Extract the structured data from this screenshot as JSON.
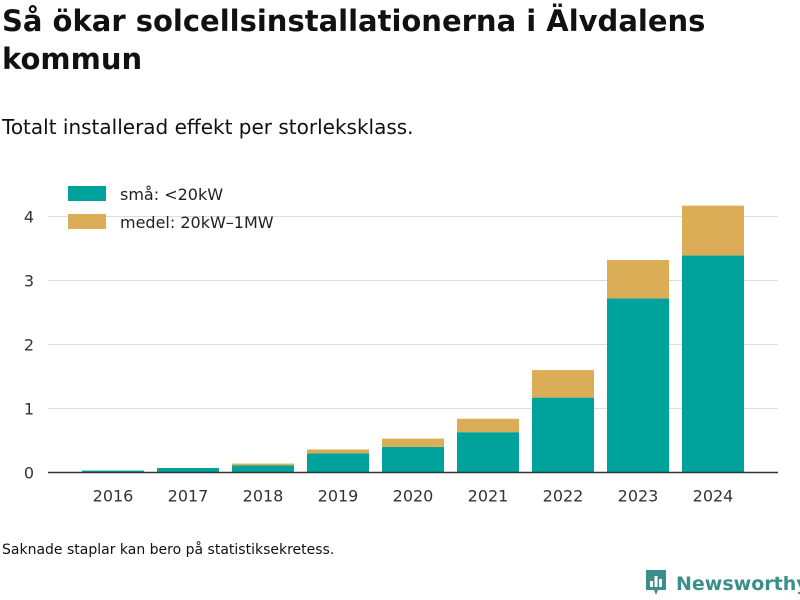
{
  "header": {
    "title": "Så ökar solcellsinstallationerna i Älvdalens kommun",
    "subtitle": "Totalt installerad effekt per storleksklass."
  },
  "footer": {
    "note": "Saknade staplar kan bero på statistiksekretess.",
    "brand": "Newsworthy"
  },
  "colors": {
    "small": "#00a39b",
    "medium": "#dcad57",
    "brand": "#3b8e8a",
    "grid": "#dddddd",
    "axis": "#333333"
  },
  "chart_data": {
    "type": "bar",
    "stacked": true,
    "categories": [
      "2016",
      "2017",
      "2018",
      "2019",
      "2020",
      "2021",
      "2022",
      "2023",
      "2024"
    ],
    "series": [
      {
        "name": "små: <20kW",
        "values": [
          0.03,
          0.07,
          0.11,
          0.3,
          0.4,
          0.63,
          1.17,
          2.72,
          3.39
        ]
      },
      {
        "name": "medel: 20kW–1MW",
        "values": [
          0.0,
          0.0,
          0.03,
          0.06,
          0.13,
          0.21,
          0.43,
          0.6,
          0.78
        ]
      }
    ],
    "y_ticks": [
      0,
      1,
      2,
      3,
      4
    ],
    "ylim": [
      0,
      4.3
    ],
    "grid": true,
    "legend_position": "top-left",
    "xlabel": "",
    "ylabel": ""
  }
}
